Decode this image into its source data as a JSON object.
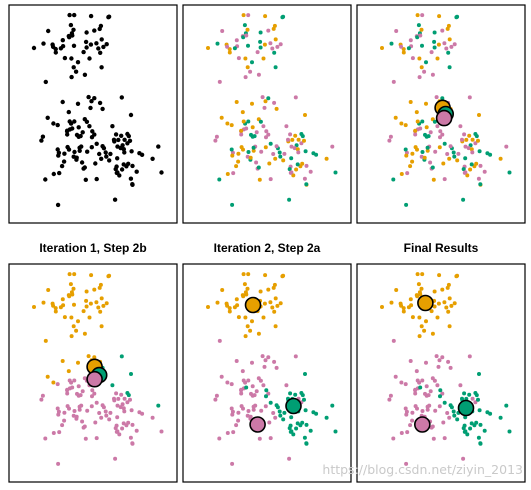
{
  "figure": {
    "palette": {
      "cluster-1": "#E69F00",
      "cluster-2": "#CC79A7",
      "cluster-3": "#009E73",
      "unassigned": "#000000"
    },
    "watermark": "https://blog.csdn.net/ziyin_2013"
  },
  "chart_data": [
    {
      "type": "scatter",
      "title": "",
      "grid": false,
      "note": "Panel 1: all observations, unassigned",
      "xlim": [
        0,
        10
      ],
      "ylim": [
        0,
        10
      ],
      "cluster_centers": [
        {
          "name": "cluster-1",
          "x": 4.0,
          "y": 8.6
        },
        {
          "name": "cluster-2",
          "x": 3.9,
          "y": 3.5
        },
        {
          "name": "cluster-3",
          "x": 6.8,
          "y": 3.2
        }
      ],
      "point_colors": "unassigned",
      "centroids": []
    },
    {
      "type": "scatter",
      "title": "",
      "grid": false,
      "note": "Panel 2: random initial assignment",
      "xlim": [
        0,
        10
      ],
      "ylim": [
        0,
        10
      ],
      "point_colors": "random",
      "centroids": []
    },
    {
      "type": "scatter",
      "title": "",
      "grid": false,
      "note": "Panel 3: initial centroids",
      "xlim": [
        0,
        10
      ],
      "ylim": [
        0,
        10
      ],
      "point_colors": "random",
      "centroids": [
        {
          "cluster": "cluster-1",
          "x": 5.1,
          "y": 5.3
        },
        {
          "cluster": "cluster-3",
          "x": 5.3,
          "y": 5.0
        },
        {
          "cluster": "cluster-2",
          "x": 5.2,
          "y": 4.8
        }
      ]
    },
    {
      "type": "scatter",
      "title": "Iteration 1, Step 2b",
      "grid": false,
      "xlim": [
        0,
        10
      ],
      "ylim": [
        0,
        10
      ],
      "point_colors": "nearest_initial",
      "centroids": [
        {
          "cluster": "cluster-1",
          "x": 5.1,
          "y": 5.3
        },
        {
          "cluster": "cluster-3",
          "x": 5.4,
          "y": 4.9
        },
        {
          "cluster": "cluster-2",
          "x": 5.1,
          "y": 4.7
        }
      ]
    },
    {
      "type": "scatter",
      "title": "Iteration 2, Step 2a",
      "grid": false,
      "xlim": [
        0,
        10
      ],
      "ylim": [
        0,
        10
      ],
      "point_colors": "true_cluster",
      "centroids": [
        {
          "cluster": "cluster-1",
          "x": 4.1,
          "y": 8.3
        },
        {
          "cluster": "cluster-3",
          "x": 6.7,
          "y": 3.4
        },
        {
          "cluster": "cluster-2",
          "x": 4.4,
          "y": 2.5
        }
      ]
    },
    {
      "type": "scatter",
      "title": "Final Results",
      "grid": false,
      "xlim": [
        0,
        10
      ],
      "ylim": [
        0,
        10
      ],
      "point_colors": "true_cluster",
      "centroids": [
        {
          "cluster": "cluster-1",
          "x": 4.0,
          "y": 8.4
        },
        {
          "cluster": "cluster-3",
          "x": 6.6,
          "y": 3.3
        },
        {
          "cluster": "cluster-2",
          "x": 3.8,
          "y": 2.5
        }
      ]
    }
  ]
}
